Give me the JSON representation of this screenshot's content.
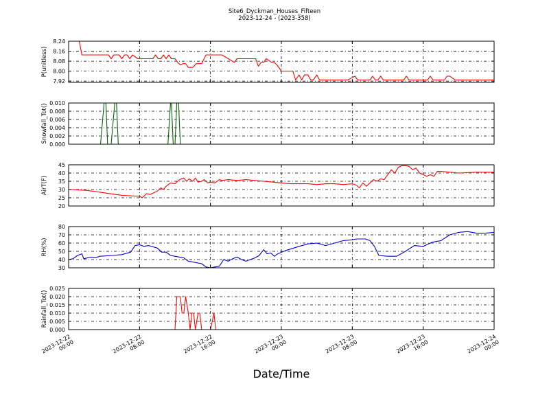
{
  "title": "Site6_Dyckman_Houses_Fifteen",
  "subtitle": "2023-12-24 - (2023-358)",
  "xlabel": "Date/Time",
  "x_ticks": [
    {
      "t": 0,
      "l1": "2023-12-22",
      "l2": "00:00"
    },
    {
      "t": 8,
      "l1": "2023-12-22",
      "l2": "08:00"
    },
    {
      "t": 16,
      "l1": "2023-12-22",
      "l2": "16:00"
    },
    {
      "t": 24,
      "l1": "2023-12-23",
      "l2": "00:00"
    },
    {
      "t": 32,
      "l1": "2023-12-23",
      "l2": "08:00"
    },
    {
      "t": 40,
      "l1": "2023-12-23",
      "l2": "16:00"
    },
    {
      "t": 48,
      "l1": "2023-12-24",
      "l2": "00:00"
    }
  ],
  "chart_data": [
    {
      "type": "line",
      "ylabel": "P(unitless)",
      "ylim": [
        7.91,
        8.24
      ],
      "yticks": [
        7.92,
        8.0,
        8.08,
        8.16,
        8.24
      ],
      "ytick_labels": [
        "7.92",
        "8.00",
        "8.08",
        "8.16",
        "8.24"
      ],
      "color": "#ff0000",
      "grid": true,
      "series": [
        {
          "x": [
            0,
            1.2,
            1.5,
            4.5,
            4.8,
            5.1,
            5.7,
            6.0,
            6.3,
            6.6,
            6.9,
            7.2,
            7.8,
            9.5,
            9.8,
            10.1,
            10.4,
            10.7,
            11.0,
            11.3,
            11.6,
            12.0,
            12.3,
            12.6,
            12.9,
            13.2,
            13.5,
            14.0,
            14.4,
            14.7,
            15.0,
            15.5,
            16.0,
            16.6,
            17.3,
            18.7,
            19.0,
            19.3,
            21.1,
            21.4,
            21.7,
            22.0,
            22.3,
            22.9,
            23.2,
            23.5,
            24.0,
            24.4,
            25.3,
            25.6,
            26.0,
            26.3,
            26.6,
            27.0,
            27.3,
            27.6,
            28.0,
            28.3,
            31.5,
            32.3,
            32.6,
            34.0,
            34.3,
            34.6,
            34.9,
            35.2,
            35.5,
            35.8,
            36.1,
            37.8,
            38.1,
            38.4,
            40.2,
            40.5,
            40.8,
            41.1,
            41.6,
            42.4,
            42.7,
            43.0,
            43.6,
            44.3,
            48.0
          ],
          "y": [
            8.24,
            8.24,
            8.13,
            8.13,
            8.1,
            8.13,
            8.13,
            8.1,
            8.13,
            8.13,
            8.1,
            8.13,
            8.1,
            8.1,
            8.13,
            8.1,
            8.1,
            8.13,
            8.1,
            8.13,
            8.1,
            8.1,
            8.07,
            8.05,
            8.06,
            8.06,
            8.03,
            8.03,
            8.06,
            8.06,
            8.06,
            8.13,
            8.13,
            8.13,
            8.13,
            8.07,
            8.1,
            8.1,
            8.1,
            8.04,
            8.07,
            8.07,
            8.1,
            8.07,
            8.07,
            8.05,
            8.0,
            8.0,
            8.0,
            7.93,
            7.97,
            7.93,
            7.97,
            7.97,
            7.93,
            7.93,
            7.97,
            7.93,
            7.93,
            7.96,
            7.93,
            7.93,
            7.96,
            7.93,
            7.93,
            7.96,
            7.93,
            7.93,
            7.93,
            7.93,
            7.96,
            7.93,
            7.93,
            7.93,
            7.96,
            7.93,
            7.93,
            7.93,
            7.96,
            7.96,
            7.93,
            7.93,
            7.93
          ]
        }
      ]
    },
    {
      "type": "line",
      "ylabel": "Snowfall_Tot()",
      "ylim": [
        0.0,
        0.01
      ],
      "yticks": [
        0.0,
        0.002,
        0.004,
        0.006,
        0.008,
        0.01
      ],
      "ytick_labels": [
        "0.000",
        "0.002",
        "0.004",
        "0.006",
        "0.008",
        "0.010"
      ],
      "color": "#006400",
      "grid": true,
      "series": [
        {
          "x": [
            0,
            3.6,
            4.0,
            4.2,
            4.4,
            4.8,
            5.2,
            5.4,
            5.6,
            11.2,
            11.5,
            11.6,
            11.8,
            12.0,
            12.2,
            12.4,
            12.6,
            48.0
          ],
          "y": [
            0,
            0,
            0.01,
            0.01,
            0,
            0,
            0.01,
            0.01,
            0,
            0,
            0.01,
            0.01,
            0,
            0,
            0.01,
            0.01,
            0,
            0
          ]
        }
      ]
    },
    {
      "type": "line",
      "ylabel": "AirT(F)",
      "ylim": [
        20,
        45
      ],
      "yticks": [
        20,
        25,
        30,
        35,
        40,
        45
      ],
      "ytick_labels": [
        "20",
        "25",
        "30",
        "35",
        "40",
        "45"
      ],
      "color": "#ff0000",
      "grid": true,
      "series": [
        {
          "x": [
            0,
            2.0,
            4.0,
            6.0,
            7.5,
            8.0,
            8.3,
            8.8,
            9.2,
            9.6,
            10.0,
            10.4,
            10.7,
            11.0,
            11.5,
            12.0,
            12.5,
            13.0,
            13.3,
            13.6,
            14.0,
            14.3,
            14.6,
            15.0,
            15.3,
            15.7,
            16.0,
            16.5,
            17.0,
            17.3,
            18.0,
            19.0,
            20.0,
            21.0,
            22.0,
            23.0,
            24.0,
            25.0,
            26.0,
            27.0,
            28.0,
            29.0,
            30.0,
            31.0,
            32.0,
            32.5,
            32.8,
            33.2,
            33.6,
            34.0,
            34.4,
            34.8,
            35.2,
            35.6,
            36.0,
            36.4,
            36.8,
            37.2,
            37.6,
            38.0,
            38.4,
            38.8,
            39.2,
            39.6,
            40.0,
            40.4,
            40.8,
            41.2,
            41.6,
            42.0,
            43.0,
            44.0,
            46.0,
            48.0
          ],
          "y": [
            30,
            29.5,
            28,
            26.5,
            26,
            26,
            25,
            27.5,
            27,
            28,
            29,
            31,
            30,
            32,
            34,
            33.5,
            36,
            37,
            35,
            36.5,
            35,
            37,
            34.5,
            35,
            36,
            34,
            34.5,
            34,
            36,
            35.5,
            36,
            35.5,
            36,
            35.5,
            35,
            34.5,
            34,
            33.5,
            33.5,
            33.5,
            33,
            33.5,
            33.5,
            33,
            33.5,
            32.5,
            31,
            34,
            32,
            34,
            36,
            35,
            36.5,
            36,
            39,
            42,
            40,
            43.5,
            44.5,
            44.5,
            44,
            42,
            43,
            40,
            39,
            38,
            39,
            38,
            41,
            41,
            40.5,
            40,
            40.5,
            40.5
          ]
        }
      ]
    },
    {
      "type": "line",
      "ylabel": "RH(%)",
      "ylim": [
        30,
        80
      ],
      "yticks": [
        30,
        40,
        50,
        60,
        70,
        80
      ],
      "ytick_labels": [
        "30",
        "40",
        "50",
        "60",
        "70",
        "80"
      ],
      "color": "#0000cc",
      "grid": true,
      "series": [
        {
          "x": [
            0,
            0.5,
            1.0,
            1.5,
            1.7,
            2.5,
            3.0,
            3.5,
            5.0,
            6.0,
            7.0,
            7.5,
            8.0,
            8.5,
            9.0,
            10.0,
            10.5,
            11.0,
            11.5,
            12.0,
            13.0,
            13.5,
            14.0,
            15.0,
            15.5,
            16.0,
            16.5,
            17.0,
            17.5,
            18.0,
            18.5,
            19.0,
            19.5,
            20.0,
            21.0,
            21.5,
            22.0,
            22.4,
            22.8,
            23.2,
            23.6,
            24.5,
            26.0,
            27.0,
            28.0,
            29.0,
            30.0,
            31.0,
            32.0,
            32.5,
            33.0,
            33.5,
            34.0,
            34.5,
            35.0,
            36.0,
            37.0,
            38.0,
            39.0,
            40.0,
            41.0,
            42.0,
            43.0,
            44.0,
            45.0,
            46.0,
            47.0,
            48.0
          ],
          "y": [
            40,
            41,
            45,
            47,
            41,
            43,
            42,
            44,
            45,
            46,
            49,
            57,
            58,
            56,
            57,
            54,
            49,
            49,
            45,
            44,
            42,
            38,
            37,
            35,
            31,
            30,
            31,
            32,
            40,
            38,
            41,
            43,
            40,
            38,
            42,
            45,
            52,
            47,
            48,
            44,
            47,
            51,
            56,
            59,
            60,
            57,
            60,
            63,
            64,
            65,
            65,
            65,
            63,
            56,
            45,
            44,
            44,
            50,
            57,
            56,
            61,
            63,
            70,
            73,
            74,
            72,
            72,
            73
          ]
        }
      ]
    },
    {
      "type": "line",
      "ylabel": "Rainfall_Tot()",
      "ylim": [
        0.0,
        0.025
      ],
      "yticks": [
        0.0,
        0.005,
        0.01,
        0.015,
        0.02,
        0.025
      ],
      "ytick_labels": [
        "0.000",
        "0.005",
        "0.010",
        "0.015",
        "0.020",
        "0.025"
      ],
      "color": "#ff0000",
      "grid": true,
      "series": [
        {
          "x": [
            0,
            12.0,
            12.2,
            12.6,
            12.8,
            13.0,
            13.2,
            13.5,
            13.7,
            13.9,
            14.1,
            14.3,
            14.6,
            14.8,
            15.0,
            16.0,
            16.4,
            16.6,
            48.0
          ],
          "y": [
            0,
            0,
            0.02,
            0.02,
            0.01,
            0.01,
            0.02,
            0.01,
            0,
            0.01,
            0.01,
            0,
            0.01,
            0.01,
            0,
            0,
            0.01,
            0,
            0
          ]
        }
      ]
    }
  ]
}
